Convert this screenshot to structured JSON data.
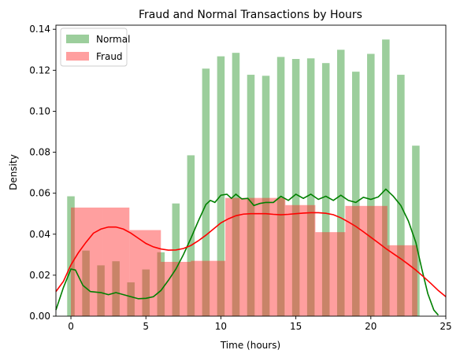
{
  "chart_data": {
    "type": "bar",
    "title": "Fraud and Normal Transactions by Hours",
    "xlabel": "Time (hours)",
    "ylabel": "Density",
    "xlim": [
      -1,
      25
    ],
    "ylim": [
      0,
      0.142
    ],
    "xticks": [
      0,
      5,
      10,
      15,
      20,
      25
    ],
    "yticks": [
      0.0,
      0.02,
      0.04,
      0.06,
      0.08,
      0.1,
      0.12,
      0.14
    ],
    "ytick_labels": [
      "0.00",
      "0.02",
      "0.04",
      "0.06",
      "0.08",
      "0.10",
      "0.12",
      "0.14"
    ],
    "legend_position": "top-left",
    "grid": false,
    "series": [
      {
        "name": "Normal",
        "color": "#3a9e3a",
        "bar_width": 0.5,
        "bars": [
          {
            "x": 0,
            "y": 0.0585
          },
          {
            "x": 1,
            "y": 0.032
          },
          {
            "x": 2,
            "y": 0.0248
          },
          {
            "x": 3,
            "y": 0.0268
          },
          {
            "x": 4,
            "y": 0.0165
          },
          {
            "x": 5,
            "y": 0.0228
          },
          {
            "x": 6,
            "y": 0.0312
          },
          {
            "x": 7,
            "y": 0.055
          },
          {
            "x": 8,
            "y": 0.0785
          },
          {
            "x": 9,
            "y": 0.1208
          },
          {
            "x": 10,
            "y": 0.1268
          },
          {
            "x": 11,
            "y": 0.1285
          },
          {
            "x": 12,
            "y": 0.1178
          },
          {
            "x": 13,
            "y": 0.1173
          },
          {
            "x": 14,
            "y": 0.1265
          },
          {
            "x": 15,
            "y": 0.1255
          },
          {
            "x": 16,
            "y": 0.1258
          },
          {
            "x": 17,
            "y": 0.1235
          },
          {
            "x": 18,
            "y": 0.13
          },
          {
            "x": 19,
            "y": 0.1193
          },
          {
            "x": 20,
            "y": 0.128
          },
          {
            "x": 21,
            "y": 0.135
          },
          {
            "x": 22,
            "y": 0.1178
          },
          {
            "x": 23,
            "y": 0.0832
          }
        ],
        "kde": [
          [
            -1,
            0.003
          ],
          [
            -0.5,
            0.014
          ],
          [
            0,
            0.023
          ],
          [
            0.3,
            0.0225
          ],
          [
            0.8,
            0.015
          ],
          [
            1.3,
            0.012
          ],
          [
            2,
            0.0115
          ],
          [
            2.5,
            0.0105
          ],
          [
            3,
            0.0115
          ],
          [
            3.5,
            0.0105
          ],
          [
            4,
            0.0095
          ],
          [
            4.5,
            0.0085
          ],
          [
            5,
            0.0087
          ],
          [
            5.5,
            0.0095
          ],
          [
            6,
            0.0125
          ],
          [
            6.5,
            0.0175
          ],
          [
            7,
            0.023
          ],
          [
            7.5,
            0.03
          ],
          [
            8,
            0.038
          ],
          [
            8.5,
            0.0465
          ],
          [
            9,
            0.0545
          ],
          [
            9.3,
            0.0565
          ],
          [
            9.6,
            0.0555
          ],
          [
            10,
            0.059
          ],
          [
            10.4,
            0.0595
          ],
          [
            10.7,
            0.0575
          ],
          [
            11,
            0.0595
          ],
          [
            11.4,
            0.0572
          ],
          [
            11.8,
            0.0575
          ],
          [
            12.2,
            0.054
          ],
          [
            12.6,
            0.055
          ],
          [
            13,
            0.0555
          ],
          [
            13.5,
            0.0555
          ],
          [
            14,
            0.0585
          ],
          [
            14.5,
            0.0565
          ],
          [
            15,
            0.0595
          ],
          [
            15.5,
            0.0575
          ],
          [
            16,
            0.0595
          ],
          [
            16.5,
            0.057
          ],
          [
            17,
            0.0585
          ],
          [
            17.5,
            0.0565
          ],
          [
            18,
            0.059
          ],
          [
            18.5,
            0.0565
          ],
          [
            19,
            0.0555
          ],
          [
            19.5,
            0.058
          ],
          [
            20,
            0.057
          ],
          [
            20.5,
            0.0582
          ],
          [
            21,
            0.062
          ],
          [
            21.5,
            0.0585
          ],
          [
            22,
            0.054
          ],
          [
            22.5,
            0.0465
          ],
          [
            23,
            0.036
          ],
          [
            23.4,
            0.023
          ],
          [
            23.8,
            0.011
          ],
          [
            24.2,
            0.003
          ],
          [
            24.5,
            0.0005
          ]
        ]
      },
      {
        "name": "Fraud",
        "color": "#ff2a2a",
        "bars": [
          {
            "x0": 0,
            "x1": 2.1,
            "y": 0.053
          },
          {
            "x0": 2.1,
            "x1": 3.9,
            "y": 0.053
          },
          {
            "x0": 3.9,
            "x1": 6,
            "y": 0.042
          },
          {
            "x0": 6,
            "x1": 8,
            "y": 0.0265
          },
          {
            "x0": 8,
            "x1": 10.3,
            "y": 0.027
          },
          {
            "x0": 10.3,
            "x1": 12.4,
            "y": 0.0577
          },
          {
            "x0": 12.4,
            "x1": 14.3,
            "y": 0.0577
          },
          {
            "x0": 14.3,
            "x1": 16.3,
            "y": 0.0542
          },
          {
            "x0": 16.3,
            "x1": 18.3,
            "y": 0.041
          },
          {
            "x0": 18.3,
            "x1": 21.1,
            "y": 0.0538
          },
          {
            "x0": 21.1,
            "x1": 23.1,
            "y": 0.0346
          }
        ],
        "kde": [
          [
            -1,
            0.012
          ],
          [
            -0.5,
            0.017
          ],
          [
            0,
            0.025
          ],
          [
            0.5,
            0.031
          ],
          [
            1,
            0.036
          ],
          [
            1.5,
            0.0405
          ],
          [
            2,
            0.0425
          ],
          [
            2.5,
            0.0435
          ],
          [
            3,
            0.0435
          ],
          [
            3.5,
            0.0425
          ],
          [
            4,
            0.0405
          ],
          [
            4.5,
            0.038
          ],
          [
            5,
            0.0355
          ],
          [
            5.5,
            0.0338
          ],
          [
            6,
            0.0328
          ],
          [
            6.5,
            0.0322
          ],
          [
            7,
            0.0323
          ],
          [
            7.5,
            0.033
          ],
          [
            8,
            0.0345
          ],
          [
            8.5,
            0.0368
          ],
          [
            9,
            0.0395
          ],
          [
            9.5,
            0.0425
          ],
          [
            10,
            0.0455
          ],
          [
            10.5,
            0.0475
          ],
          [
            11,
            0.049
          ],
          [
            11.5,
            0.0498
          ],
          [
            12,
            0.05
          ],
          [
            12.5,
            0.05
          ],
          [
            13,
            0.05
          ],
          [
            13.5,
            0.0497
          ],
          [
            14,
            0.0495
          ],
          [
            14.5,
            0.0497
          ],
          [
            15,
            0.05
          ],
          [
            15.5,
            0.0503
          ],
          [
            16,
            0.0505
          ],
          [
            16.5,
            0.0505
          ],
          [
            17,
            0.0502
          ],
          [
            17.5,
            0.0495
          ],
          [
            18,
            0.048
          ],
          [
            18.5,
            0.046
          ],
          [
            19,
            0.0438
          ],
          [
            19.5,
            0.0412
          ],
          [
            20,
            0.0385
          ],
          [
            20.5,
            0.0358
          ],
          [
            21,
            0.033
          ],
          [
            21.5,
            0.0305
          ],
          [
            22,
            0.028
          ],
          [
            22.5,
            0.0253
          ],
          [
            23,
            0.0225
          ],
          [
            23.5,
            0.0193
          ],
          [
            24,
            0.016
          ],
          [
            24.5,
            0.0125
          ],
          [
            25,
            0.0095
          ]
        ]
      }
    ]
  }
}
